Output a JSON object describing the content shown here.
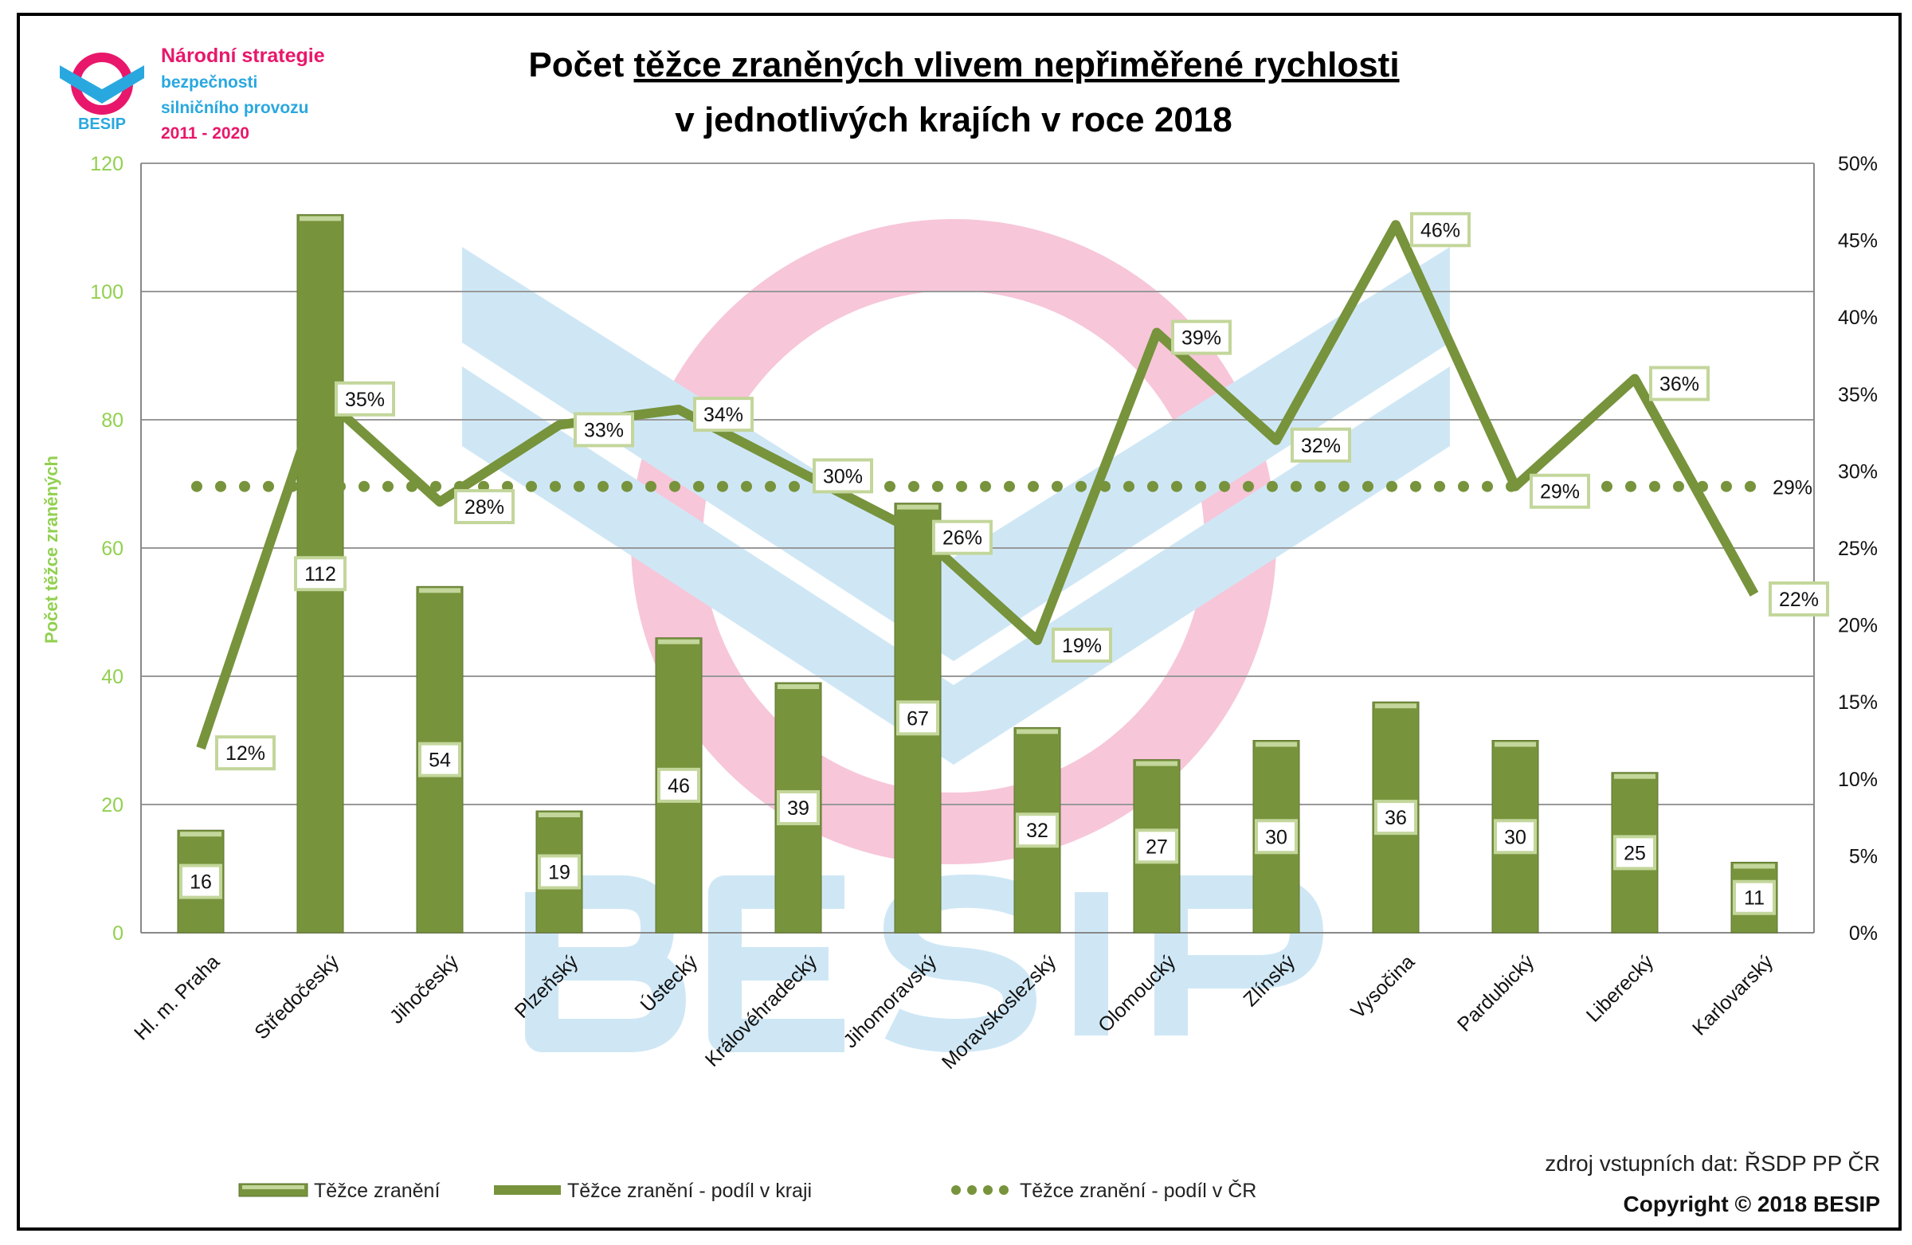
{
  "logo": {
    "mark_text": "BESIP",
    "line1": "Národní strategie",
    "line2": "bezpečnosti",
    "line3": "silničního provozu",
    "line4": "2011 - 2020"
  },
  "watermark_text": "BESIP",
  "source": "zdroj vstupních dat: ŘSDP PP ČR",
  "copyright": "Copyright © 2018 BESIP",
  "colors": {
    "bar": "#77933c",
    "bar_light": "#c3d69b",
    "line": "#77933c",
    "left_axis": "#92d050",
    "logo_pink": "#e8176b",
    "logo_blue": "#29a8e0",
    "watermark_pink": "#f7c6d9",
    "watermark_blue": "#cfe7f5"
  },
  "chart_data": {
    "type": "bar+line",
    "title_line1_plain": "Počet ",
    "title_line1_underlined": "těžce zraněných vlivem nepřiměřené rychlosti",
    "title_line2": "v jednotlivých krajích v roce 2018",
    "ylabel": "Počet těžce zraněných",
    "ylim": [
      0,
      120
    ],
    "yticks": [
      "0",
      "20",
      "40",
      "60",
      "80",
      "100",
      "120"
    ],
    "y2lim": [
      0,
      50
    ],
    "y2ticks": [
      "0%",
      "5%",
      "10%",
      "15%",
      "20%",
      "25%",
      "30%",
      "35%",
      "40%",
      "45%",
      "50%"
    ],
    "grid": true,
    "legend_position": "bottom",
    "categories": [
      "Hl. m. Praha",
      "Středočeský",
      "Jihočeský",
      "Plzeňský",
      "Ústecký",
      "Královéhradecký",
      "Jihomoravský",
      "Moravskoslezský",
      "Olomoucký",
      "Zlínský",
      "Vysočina",
      "Pardubický",
      "Liberecký",
      "Karlovarský"
    ],
    "series": [
      {
        "name": "Těžce zranění",
        "type": "bar",
        "axis": "left",
        "values": [
          16,
          112,
          54,
          19,
          46,
          39,
          67,
          32,
          27,
          30,
          36,
          30,
          25,
          11
        ]
      },
      {
        "name": "Těžce zranění - podíl v kraji",
        "type": "line",
        "axis": "right",
        "values": [
          12,
          35,
          28,
          33,
          34,
          30,
          26,
          19,
          39,
          32,
          46,
          29,
          36,
          22
        ]
      },
      {
        "name": "Těžce zranění - podíl v ČR",
        "type": "dotted-line",
        "axis": "right",
        "value": 29,
        "label": "29%"
      }
    ]
  }
}
